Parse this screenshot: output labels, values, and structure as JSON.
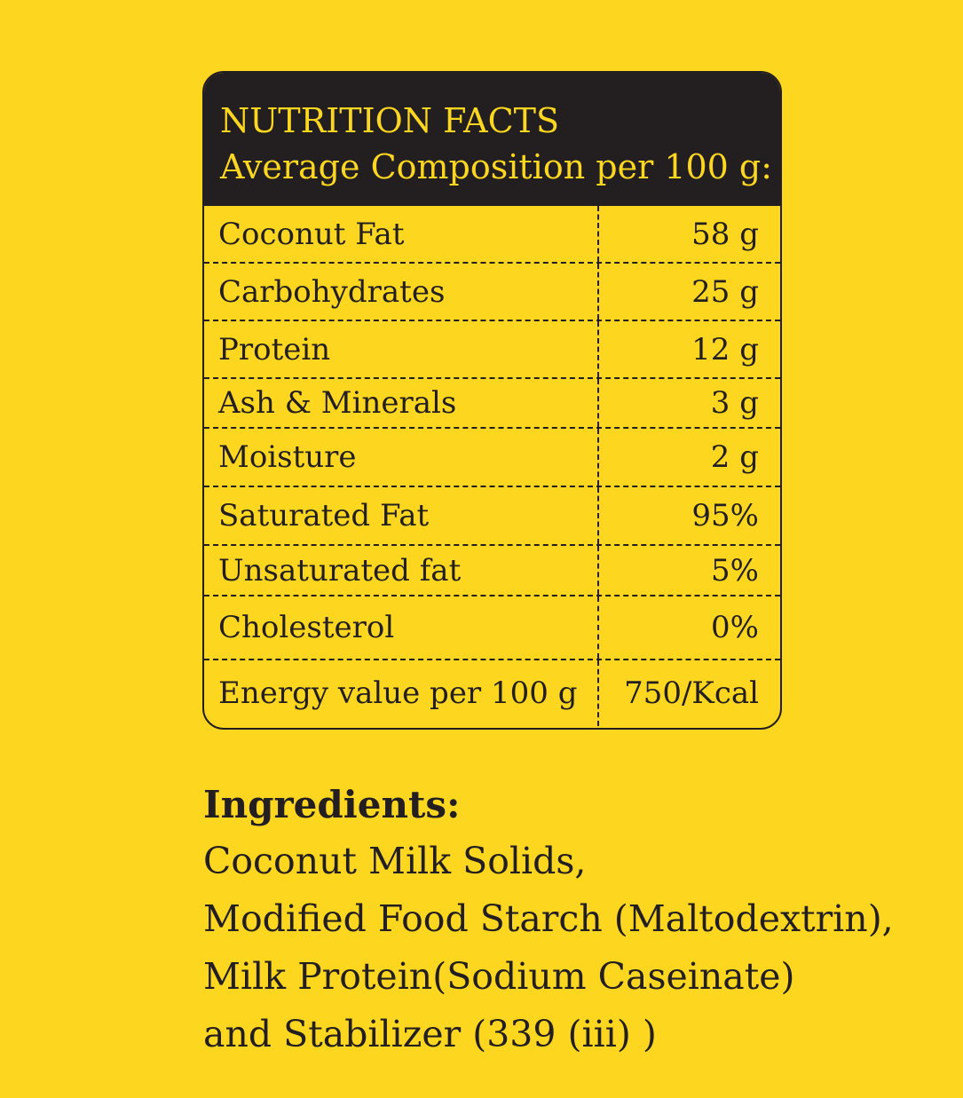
{
  "nutrition": {
    "title": "NUTRITION FACTS",
    "subtitle": "Average Composition per 100 g:",
    "rows": [
      {
        "name": "Coconut Fat",
        "value": "58 g"
      },
      {
        "name": "Carbohydrates",
        "value": "25 g"
      },
      {
        "name": "Protein",
        "value": "12 g"
      },
      {
        "name": "Ash & Minerals",
        "value": "3 g"
      },
      {
        "name": "Moisture",
        "value": "2 g"
      },
      {
        "name": "Saturated Fat",
        "value": "95%"
      },
      {
        "name": "Unsaturated fat",
        "value": "5%"
      },
      {
        "name": "Cholesterol",
        "value": "0%"
      },
      {
        "name": "Energy value per 100 g",
        "value": "750/Kcal"
      }
    ]
  },
  "ingredients": {
    "heading": "Ingredients:",
    "lines": [
      "Coconut Milk Solids,",
      "Modified Food Starch (Maltodextrin),",
      "Milk Protein(Sodium Caseinate)",
      "and Stabilizer (339 (iii) )"
    ]
  },
  "colors": {
    "background": "#fdd71f",
    "header": "#231f20",
    "text": "#231f20"
  }
}
